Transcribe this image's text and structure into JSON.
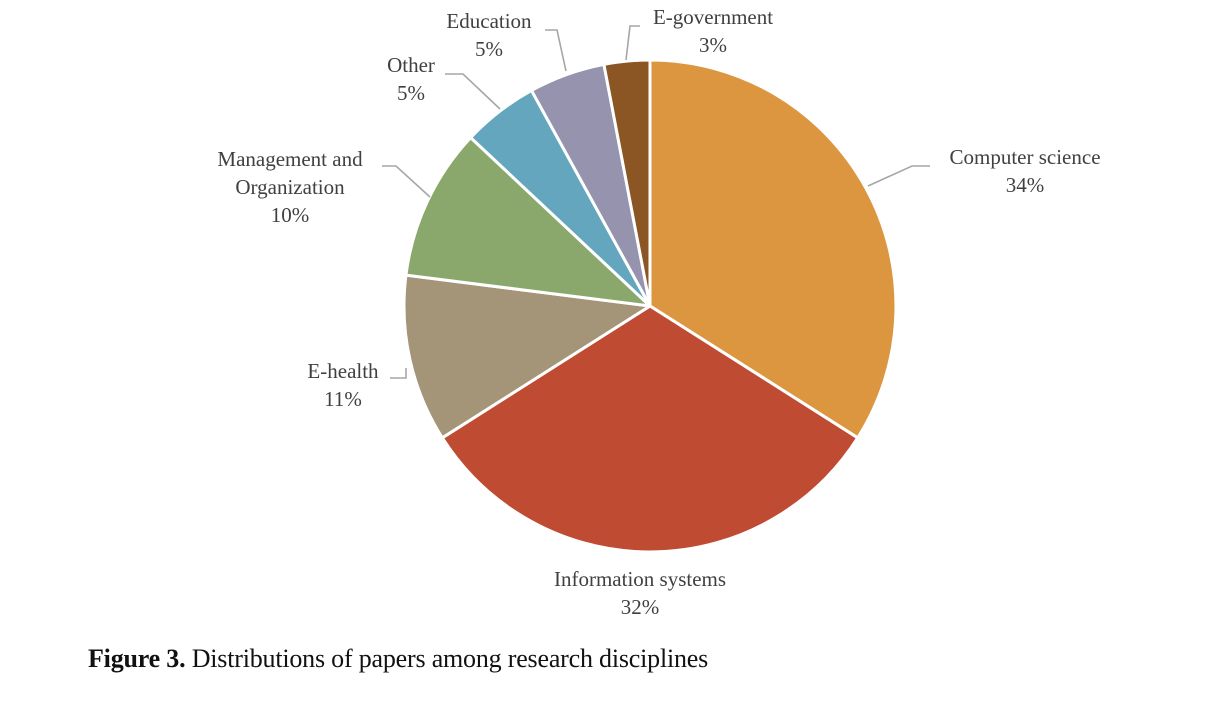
{
  "chart_data": {
    "type": "pie",
    "title": "",
    "slices": [
      {
        "name": "Computer science",
        "lines": [
          "Computer science"
        ],
        "value": 34,
        "label": "34%",
        "color": "#DD9640"
      },
      {
        "name": "Information systems",
        "lines": [
          "Information systems"
        ],
        "value": 32,
        "label": "32%",
        "color": "#BE4B32"
      },
      {
        "name": "E-health",
        "lines": [
          "E-health"
        ],
        "value": 11,
        "label": "11%",
        "color": "#A49478"
      },
      {
        "name": "Management and Organization",
        "lines": [
          "Management and",
          "Organization"
        ],
        "value": 10,
        "label": "10%",
        "color": "#8BA86C"
      },
      {
        "name": "Other",
        "lines": [
          "Other"
        ],
        "value": 5,
        "label": "5%",
        "color": "#63A6BE"
      },
      {
        "name": "Education",
        "lines": [
          "Education"
        ],
        "value": 5,
        "label": "5%",
        "color": "#9593AE"
      },
      {
        "name": "E-government",
        "lines": [
          "E-government"
        ],
        "value": 3,
        "label": "3%",
        "color": "#8C5524"
      }
    ],
    "legend": "none",
    "data_labels": "outside-with-leader-lines"
  },
  "caption": {
    "label": "Figure 3.",
    "text": " Distributions of papers among research disciplines"
  }
}
